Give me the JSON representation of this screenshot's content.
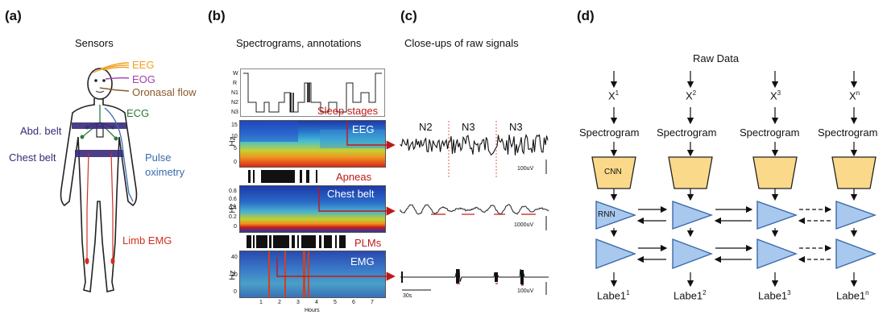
{
  "panels": {
    "a": {
      "letter": "(a)",
      "title": "Sensors",
      "labels": {
        "eeg": "EEG",
        "eog": "EOG",
        "oronasal": "Oronasal flow",
        "ecg": "ECG",
        "abd_belt": "Abd. belt",
        "chest_belt": "Chest belt",
        "pulse": "Pulse",
        "oximetry": "oximetry",
        "limb_emg": "Limb EMG"
      }
    },
    "b": {
      "letter": "(b)",
      "title": "Spectrograms, annotations",
      "hypnogram_levels": [
        "W",
        "R",
        "N1",
        "N2",
        "N3"
      ],
      "labels": {
        "sleep_stages": "Sleep stages",
        "eeg": "EEG",
        "apneas": "Apneas",
        "chest_belt": "Chest belt",
        "plms": "PLMs",
        "emg": "EMG"
      },
      "ylabel": "Hz",
      "eeg_ticks": [
        "15",
        "10",
        "5",
        "0"
      ],
      "chest_ticks": [
        "0.8",
        "0.6",
        "0.4",
        "0.2",
        "0"
      ],
      "emg_ticks": [
        "40",
        "20",
        "0"
      ],
      "x_ticks": [
        "1",
        "2",
        "3",
        "4",
        "5",
        "6",
        "7"
      ],
      "xlabel": "Hours"
    },
    "c": {
      "letter": "(c)",
      "title": "Close-ups of raw signals",
      "stages": [
        "N2",
        "N3",
        "N3"
      ],
      "scales": [
        "100uV",
        "1000uV",
        "100uV"
      ],
      "time_scale": "30s"
    },
    "d": {
      "letter": "(d)",
      "title": "Raw Data",
      "columns": [
        {
          "x": "X",
          "x_sup": "1",
          "spec": "Spectrogram",
          "label": "Labe1",
          "label_sup": "1"
        },
        {
          "x": "X",
          "x_sup": "2",
          "spec": "Spectrogram",
          "label": "Labe1",
          "label_sup": "2"
        },
        {
          "x": "X",
          "x_sup": "3",
          "spec": "Spectrogram",
          "label": "Labe1",
          "label_sup": "3"
        },
        {
          "x": "X",
          "x_sup": "n",
          "spec": "Spectrogram",
          "label": "Labe1",
          "label_sup": "n"
        }
      ],
      "cnn_label": "CNN",
      "rnn_label": "RNN"
    }
  },
  "colors": {
    "eeg": "#f0a020",
    "eog": "#a040b0",
    "oronasal": "#8a5a2a",
    "ecg": "#2a7a3a",
    "belt": "#3a2a7a",
    "pulse": "#3a6ab0",
    "emg": "#d03020",
    "annot_red": "#c01818",
    "cnn_fill": "#fbd98a",
    "rnn_fill": "#a9c8ee",
    "rnn_stroke": "#3a6aa8"
  }
}
